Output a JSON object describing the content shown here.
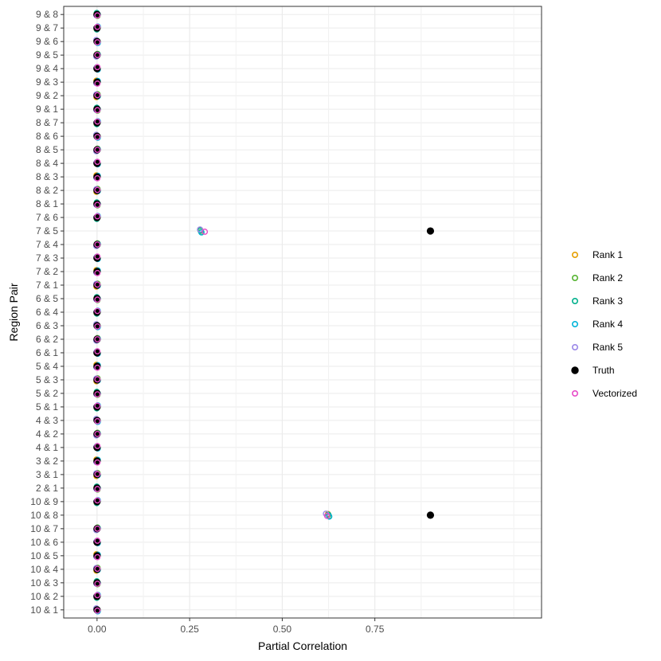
{
  "chart_data": {
    "type": "scatter",
    "title": "",
    "xlabel": "Partial Correlation",
    "ylabel": "Region Pair",
    "xlim": [
      -0.09,
      1.2
    ],
    "x_ticks": [
      0.0,
      0.25,
      0.5,
      0.75
    ],
    "x_tick_labels": [
      "0.00",
      "0.25",
      "0.50",
      "0.75"
    ],
    "grid": true,
    "legend_position": "right",
    "categories": [
      "10 & 1",
      "10 & 2",
      "10 & 3",
      "10 & 4",
      "10 & 5",
      "10 & 6",
      "10 & 7",
      "10 & 8",
      "10 & 9",
      "2 & 1",
      "3 & 1",
      "3 & 2",
      "4 & 1",
      "4 & 2",
      "4 & 3",
      "5 & 1",
      "5 & 2",
      "5 & 3",
      "5 & 4",
      "6 & 1",
      "6 & 2",
      "6 & 3",
      "6 & 4",
      "6 & 5",
      "7 & 1",
      "7 & 2",
      "7 & 3",
      "7 & 4",
      "7 & 5",
      "7 & 6",
      "8 & 1",
      "8 & 2",
      "8 & 3",
      "8 & 4",
      "8 & 5",
      "8 & 6",
      "8 & 7",
      "9 & 1",
      "9 & 2",
      "9 & 3",
      "9 & 4",
      "9 & 5",
      "9 & 6",
      "9 & 7",
      "9 & 8"
    ],
    "series": [
      {
        "name": "Rank 1",
        "color": "#E69F00",
        "filled": false,
        "default_x": 0.0,
        "values": {
          "10 & 8": 0.625,
          "7 & 5": 0.28
        }
      },
      {
        "name": "Rank 2",
        "color": "#56B432",
        "filled": false,
        "default_x": 0.0,
        "values": {
          "10 & 8": 0.625,
          "7 & 5": 0.28
        }
      },
      {
        "name": "Rank 3",
        "color": "#00B08C",
        "filled": false,
        "default_x": 0.0,
        "values": {
          "10 & 8": 0.625,
          "7 & 5": 0.28
        }
      },
      {
        "name": "Rank 4",
        "color": "#00B4D8",
        "filled": false,
        "default_x": 0.0,
        "values": {
          "10 & 8": 0.625,
          "7 & 5": 0.28
        }
      },
      {
        "name": "Rank 5",
        "color": "#9B88E8",
        "filled": false,
        "default_x": 0.0,
        "values": {
          "10 & 8": 0.62,
          "7 & 5": 0.28
        }
      },
      {
        "name": "Truth",
        "color": "#000000",
        "filled": true,
        "default_x": 0.0,
        "values": {
          "10 & 8": 0.9,
          "7 & 5": 0.9
        }
      },
      {
        "name": "Vectorized",
        "color": "#E84CC8",
        "filled": false,
        "default_x": 0.0,
        "values": {
          "10 & 8": 0.62,
          "7 & 5": 0.29
        }
      }
    ]
  }
}
